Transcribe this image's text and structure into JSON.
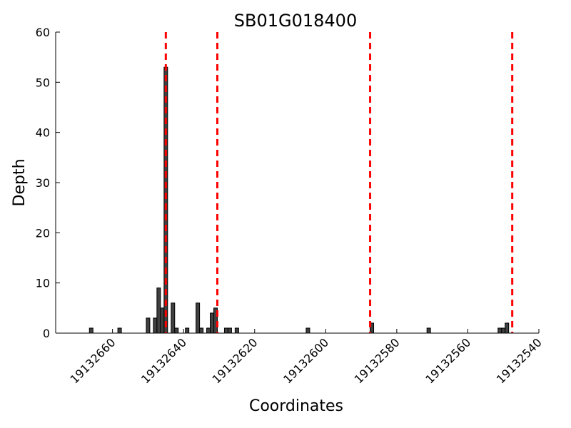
{
  "chart_data": {
    "type": "bar",
    "title": "SB01G018400",
    "xlabel": "Coordinates",
    "ylabel": "Depth",
    "xlim": [
      19132676,
      19132540
    ],
    "ylim": [
      0,
      60
    ],
    "x_ticks": [
      19132660,
      19132640,
      19132620,
      19132600,
      19132580,
      19132560,
      19132540
    ],
    "y_ticks": [
      0,
      10,
      20,
      30,
      40,
      50,
      60
    ],
    "bar_width": 1,
    "colors": {
      "bar": "#404040",
      "bar_edge": "#000000",
      "marker_line": "#ff0000"
    },
    "points": [
      {
        "x": 19132666,
        "y": 1
      },
      {
        "x": 19132658,
        "y": 1
      },
      {
        "x": 19132650,
        "y": 3
      },
      {
        "x": 19132648,
        "y": 3
      },
      {
        "x": 19132647,
        "y": 9
      },
      {
        "x": 19132646,
        "y": 5
      },
      {
        "x": 19132645,
        "y": 53
      },
      {
        "x": 19132643,
        "y": 6
      },
      {
        "x": 19132642,
        "y": 1
      },
      {
        "x": 19132639,
        "y": 1
      },
      {
        "x": 19132636,
        "y": 6
      },
      {
        "x": 19132635,
        "y": 1
      },
      {
        "x": 19132633,
        "y": 1
      },
      {
        "x": 19132632,
        "y": 4
      },
      {
        "x": 19132631,
        "y": 5
      },
      {
        "x": 19132628,
        "y": 1
      },
      {
        "x": 19132627,
        "y": 1
      },
      {
        "x": 19132625,
        "y": 1
      },
      {
        "x": 19132605,
        "y": 1
      },
      {
        "x": 19132587,
        "y": 2
      },
      {
        "x": 19132571,
        "y": 1
      },
      {
        "x": 19132551,
        "y": 1
      },
      {
        "x": 19132550,
        "y": 1
      },
      {
        "x": 19132549,
        "y": 2
      }
    ],
    "vertical_lines": [
      19132645,
      19132630.5,
      19132587.5,
      19132547.5
    ]
  }
}
